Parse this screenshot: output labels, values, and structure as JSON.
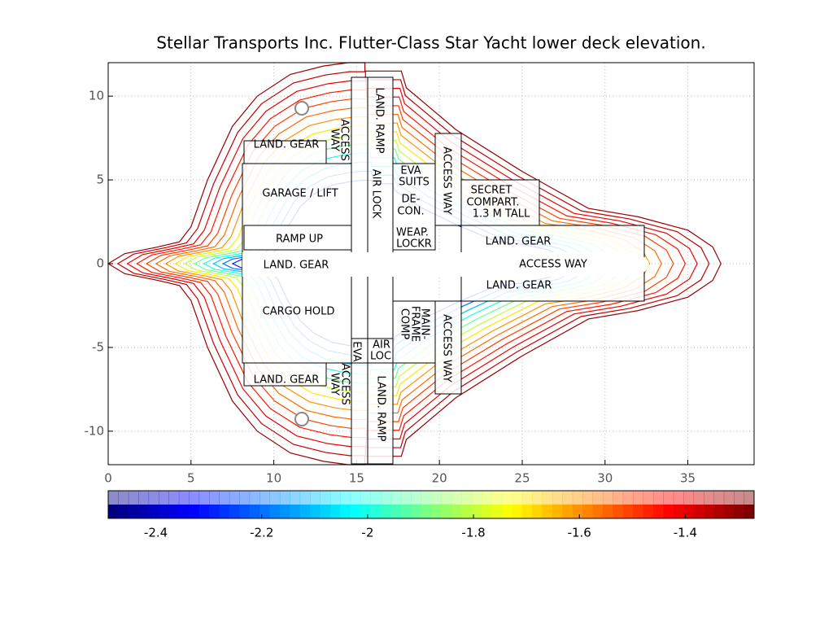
{
  "chart_data": {
    "type": "contour",
    "title": "Stellar Transports Inc. Flutter-Class Star Yacht lower deck elevation.",
    "xlim": [
      0,
      39
    ],
    "ylim": [
      -12,
      12
    ],
    "xticks": [
      0,
      5,
      10,
      15,
      20,
      25,
      30,
      35
    ],
    "yticks": [
      -10,
      -5,
      0,
      5,
      10
    ],
    "grid": true,
    "levels": [
      -1.3,
      -1.35,
      -1.4,
      -1.45,
      -1.5,
      -1.55,
      -1.6,
      -1.7,
      -1.8,
      -1.9,
      -2,
      -2.1,
      -2.2,
      -2.3
    ],
    "clim": [
      -2.49,
      -1.27
    ],
    "cticks": [
      -2.4,
      -2.2,
      -2,
      -1.8,
      -1.6,
      -1.4
    ],
    "colormap": "jet",
    "annotations": [
      "LAND. GEAR",
      "ACCESS",
      "WAY",
      "LAND. RAMP",
      "AIR LOCK",
      "EVA",
      "SUITS",
      "DE-",
      "CON.",
      "ACCESS WAY",
      "SECRET",
      "COMPART.",
      "1.3 M TALL",
      "GARAGE / LIFT",
      "RAMP UP",
      "WEAP.",
      "LOCKR",
      "LAND. GEAR",
      "LAND. GEAR",
      "ACCESS WAY",
      "LAND. GEAR",
      "CARGO HOLD",
      "MAIN-",
      "FRAME",
      "COMP",
      "ACCESS WAY",
      "EVA",
      "AIR",
      "LOC",
      "LAND. GEAR",
      "ACCESS",
      "WAY",
      "LAND. RAMP"
    ]
  }
}
